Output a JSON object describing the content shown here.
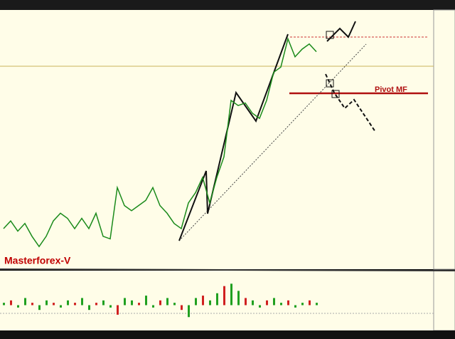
{
  "chart_data": {
    "type": "line",
    "label": "Masterforex-V",
    "pivot_label": "Pivot MF",
    "ylim": [
      0,
      100
    ],
    "series": [
      {
        "color": "#1a8a1a",
        "values": [
          15,
          18,
          14,
          17,
          12,
          8,
          12,
          18,
          21,
          19,
          15,
          19,
          15,
          21,
          12,
          11,
          31,
          24,
          22,
          24,
          26,
          31,
          24,
          21,
          17,
          15,
          25,
          29,
          35,
          25,
          35,
          43,
          65,
          63,
          64,
          60,
          58,
          65,
          76,
          78,
          89,
          82,
          85,
          87,
          84
        ]
      }
    ],
    "oscillator": {
      "ylim": [
        -10,
        10
      ],
      "values": [
        1,
        2,
        -1,
        3,
        1,
        -2,
        2,
        1,
        -1,
        2,
        1,
        3,
        -2,
        1,
        2,
        -1,
        -4,
        3,
        2,
        1,
        4,
        -1,
        2,
        3,
        1,
        -2,
        -5,
        3,
        4,
        2,
        5,
        8,
        9,
        6,
        3,
        2,
        -1,
        2,
        3,
        1,
        2,
        -1,
        1,
        2,
        1
      ]
    }
  }
}
